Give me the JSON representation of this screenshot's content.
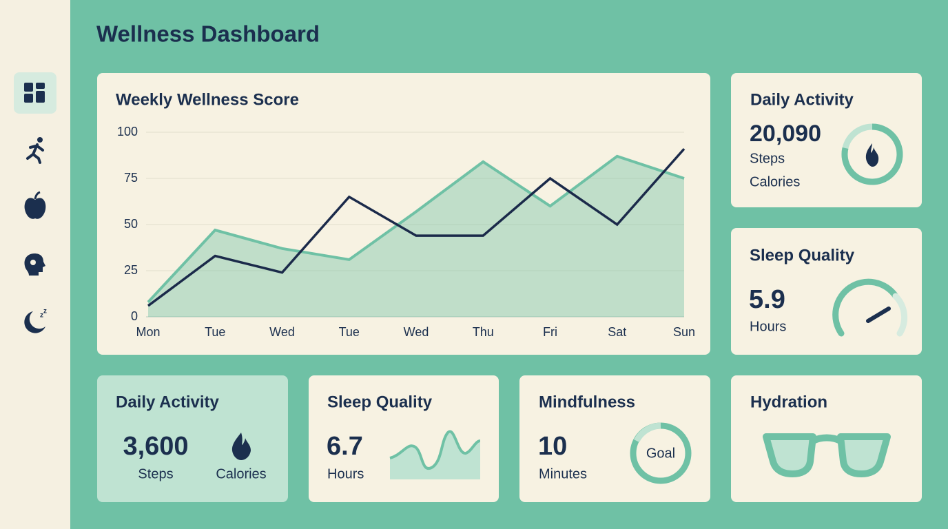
{
  "header": {
    "title": "Wellness Dashboard"
  },
  "chart_data": {
    "type": "line",
    "title": "Weekly Wellness Score",
    "categories": [
      "Mon",
      "Tue",
      "Wed",
      "Tue",
      "Wed",
      "Thu",
      "Fri",
      "Sat",
      "Sun"
    ],
    "series": [
      {
        "color": "#6fc1a5",
        "area": true,
        "values": [
          8,
          47,
          37,
          31,
          57,
          84,
          60,
          87,
          75
        ]
      },
      {
        "color": "#1b2a4a",
        "area": false,
        "values": [
          6,
          33,
          24,
          65,
          44,
          44,
          75,
          50,
          91
        ]
      }
    ],
    "ylim": [
      0,
      100
    ],
    "yticks": [
      0,
      25,
      50,
      75,
      100
    ],
    "grid": true
  },
  "cards": [
    {
      "title": "Daily Activity",
      "value": "20,090",
      "labels": [
        "Steps",
        "Calories"
      ]
    },
    {
      "title": "Sleep Quality",
      "value": "5.9",
      "unit": "Hours"
    },
    {
      "title": "Daily Activity",
      "value": "3,600",
      "labels": [
        "Steps",
        "Calories"
      ]
    },
    {
      "title": "Sleep Quality",
      "value": "6.7",
      "unit": "Hours"
    },
    {
      "title": "Mindfulness",
      "value": "10",
      "unit": "Minutes",
      "badge": "Goal"
    },
    {
      "title": "Hydration"
    }
  ]
}
